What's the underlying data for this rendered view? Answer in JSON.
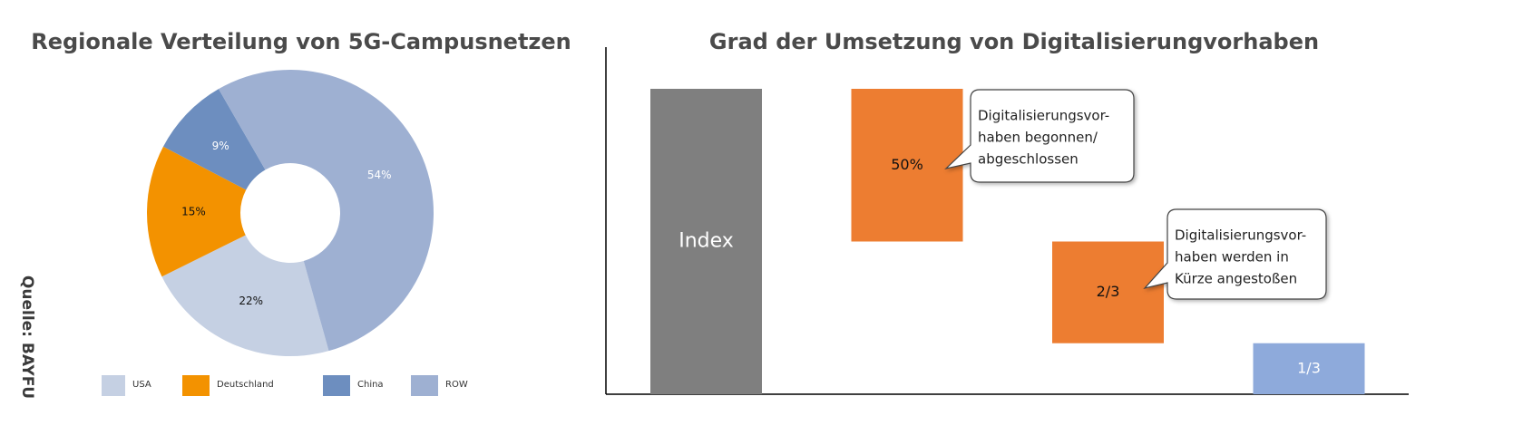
{
  "source": "Quelle: BAYFU",
  "chart_data": [
    {
      "type": "donut",
      "title": "Regionale Verteilung von 5G-Campusnetzen",
      "categories": [
        "USA",
        "Deutschland",
        "China",
        "ROW"
      ],
      "values": [
        22,
        15,
        9,
        54
      ],
      "value_labels": [
        "22%",
        "15%",
        "9%",
        "54%"
      ],
      "colors": [
        "#c5d0e3",
        "#f39200",
        "#6d8ebf",
        "#9eb0d2"
      ]
    },
    {
      "type": "waterfall",
      "title": "Grad der Umsetzung von Digitalisierungvorhaben",
      "values": [
        100,
        50,
        33.3,
        16.7
      ],
      "value_labels": [
        "Index",
        "50%",
        "2/3",
        "1/3"
      ],
      "colors": [
        "#7f7f7f",
        "#ed7d31",
        "#ed7d31",
        "#8eaadb"
      ],
      "ylim": [
        0,
        100
      ],
      "annotations": [
        {
          "lines": [
            "Digitalisierungsvor-",
            "haben begonnen/",
            "abgeschlossen"
          ]
        },
        {
          "lines": [
            "Digitalisierungsvor-",
            "haben werden in",
            "Kürze angestoßen"
          ]
        }
      ]
    }
  ]
}
